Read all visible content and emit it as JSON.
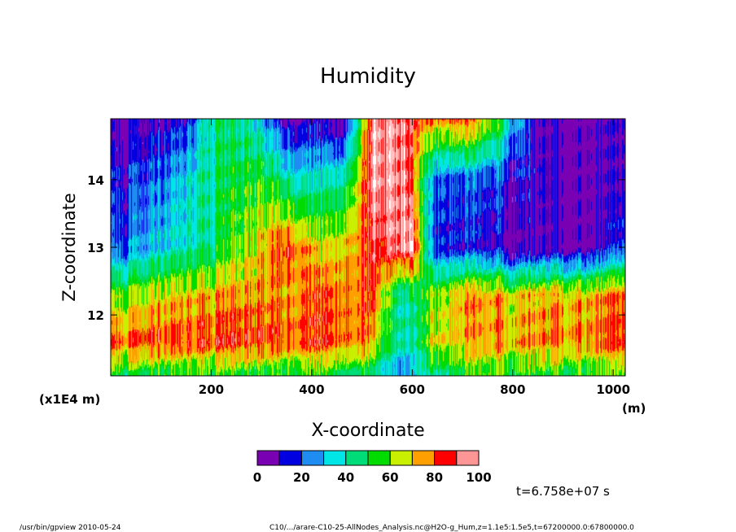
{
  "chart_data": {
    "type": "heatmap",
    "title": "Humidity",
    "xlabel": "X-coordinate",
    "ylabel": "Z-coordinate",
    "x_unit": "(m)",
    "y_unit": "(x1E4 m)",
    "x_range": [
      0,
      1024
    ],
    "y_range": [
      11.1,
      14.9
    ],
    "x_ticks": [
      200,
      400,
      600,
      800,
      1000
    ],
    "y_ticks": [
      12,
      13,
      14
    ],
    "colorbar": {
      "levels": [
        0,
        10,
        20,
        30,
        40,
        50,
        60,
        70,
        80,
        90,
        100
      ],
      "tick_labels": [
        "0",
        "20",
        "40",
        "60",
        "80",
        "100"
      ],
      "colors": [
        "#7a00b4",
        "#0000e0",
        "#1e8cf0",
        "#00e6e6",
        "#00dc78",
        "#00dc00",
        "#c8f000",
        "#ffa000",
        "#ff0000",
        "#ff9696"
      ]
    },
    "field_description_rows": [
      {
        "z": 14.9,
        "humidity_profile_by_x": [
          [
            0,
            5
          ],
          [
            150,
            15
          ],
          [
            200,
            45
          ],
          [
            280,
            40
          ],
          [
            350,
            10
          ],
          [
            460,
            5
          ],
          [
            525,
            100
          ],
          [
            580,
            95
          ],
          [
            640,
            75
          ],
          [
            700,
            85
          ],
          [
            760,
            60
          ],
          [
            850,
            5
          ],
          [
            1024,
            5
          ]
        ]
      },
      {
        "z": 14.0,
        "humidity_profile_by_x": [
          [
            0,
            15
          ],
          [
            100,
            25
          ],
          [
            200,
            45
          ],
          [
            300,
            55
          ],
          [
            400,
            35
          ],
          [
            460,
            45
          ],
          [
            525,
            100
          ],
          [
            590,
            95
          ],
          [
            640,
            25
          ],
          [
            720,
            20
          ],
          [
            800,
            15
          ],
          [
            900,
            5
          ],
          [
            1024,
            5
          ]
        ]
      },
      {
        "z": 13.0,
        "humidity_profile_by_x": [
          [
            0,
            20
          ],
          [
            100,
            35
          ],
          [
            200,
            45
          ],
          [
            300,
            70
          ],
          [
            350,
            88
          ],
          [
            420,
            65
          ],
          [
            525,
            90
          ],
          [
            600,
            100
          ],
          [
            640,
            20
          ],
          [
            800,
            5
          ],
          [
            950,
            5
          ],
          [
            1024,
            15
          ]
        ]
      },
      {
        "z": 12.3,
        "humidity_profile_by_x": [
          [
            0,
            60
          ],
          [
            100,
            70
          ],
          [
            300,
            75
          ],
          [
            400,
            80
          ],
          [
            520,
            85
          ],
          [
            580,
            40
          ],
          [
            640,
            60
          ],
          [
            700,
            75
          ],
          [
            800,
            70
          ],
          [
            1024,
            75
          ]
        ]
      },
      {
        "z": 11.6,
        "humidity_profile_by_x": [
          [
            0,
            82
          ],
          [
            100,
            85
          ],
          [
            300,
            83
          ],
          [
            500,
            84
          ],
          [
            560,
            50
          ],
          [
            600,
            40
          ],
          [
            650,
            70
          ],
          [
            800,
            75
          ],
          [
            1024,
            80
          ]
        ]
      },
      {
        "z": 11.15,
        "humidity_profile_by_x": [
          [
            0,
            55
          ],
          [
            500,
            55
          ],
          [
            580,
            25
          ],
          [
            620,
            40
          ],
          [
            700,
            55
          ],
          [
            1024,
            55
          ]
        ]
      }
    ]
  },
  "time_label": "t=6.758e+07 s",
  "footer": {
    "left": "/usr/bin/gpview   2010-05-24",
    "right": "C10/.../arare-C10-25-AllNodes_Analysis.nc@H2O-g_Hum,z=1.1e5:1.5e5,t=67200000.0:67800000.0"
  }
}
